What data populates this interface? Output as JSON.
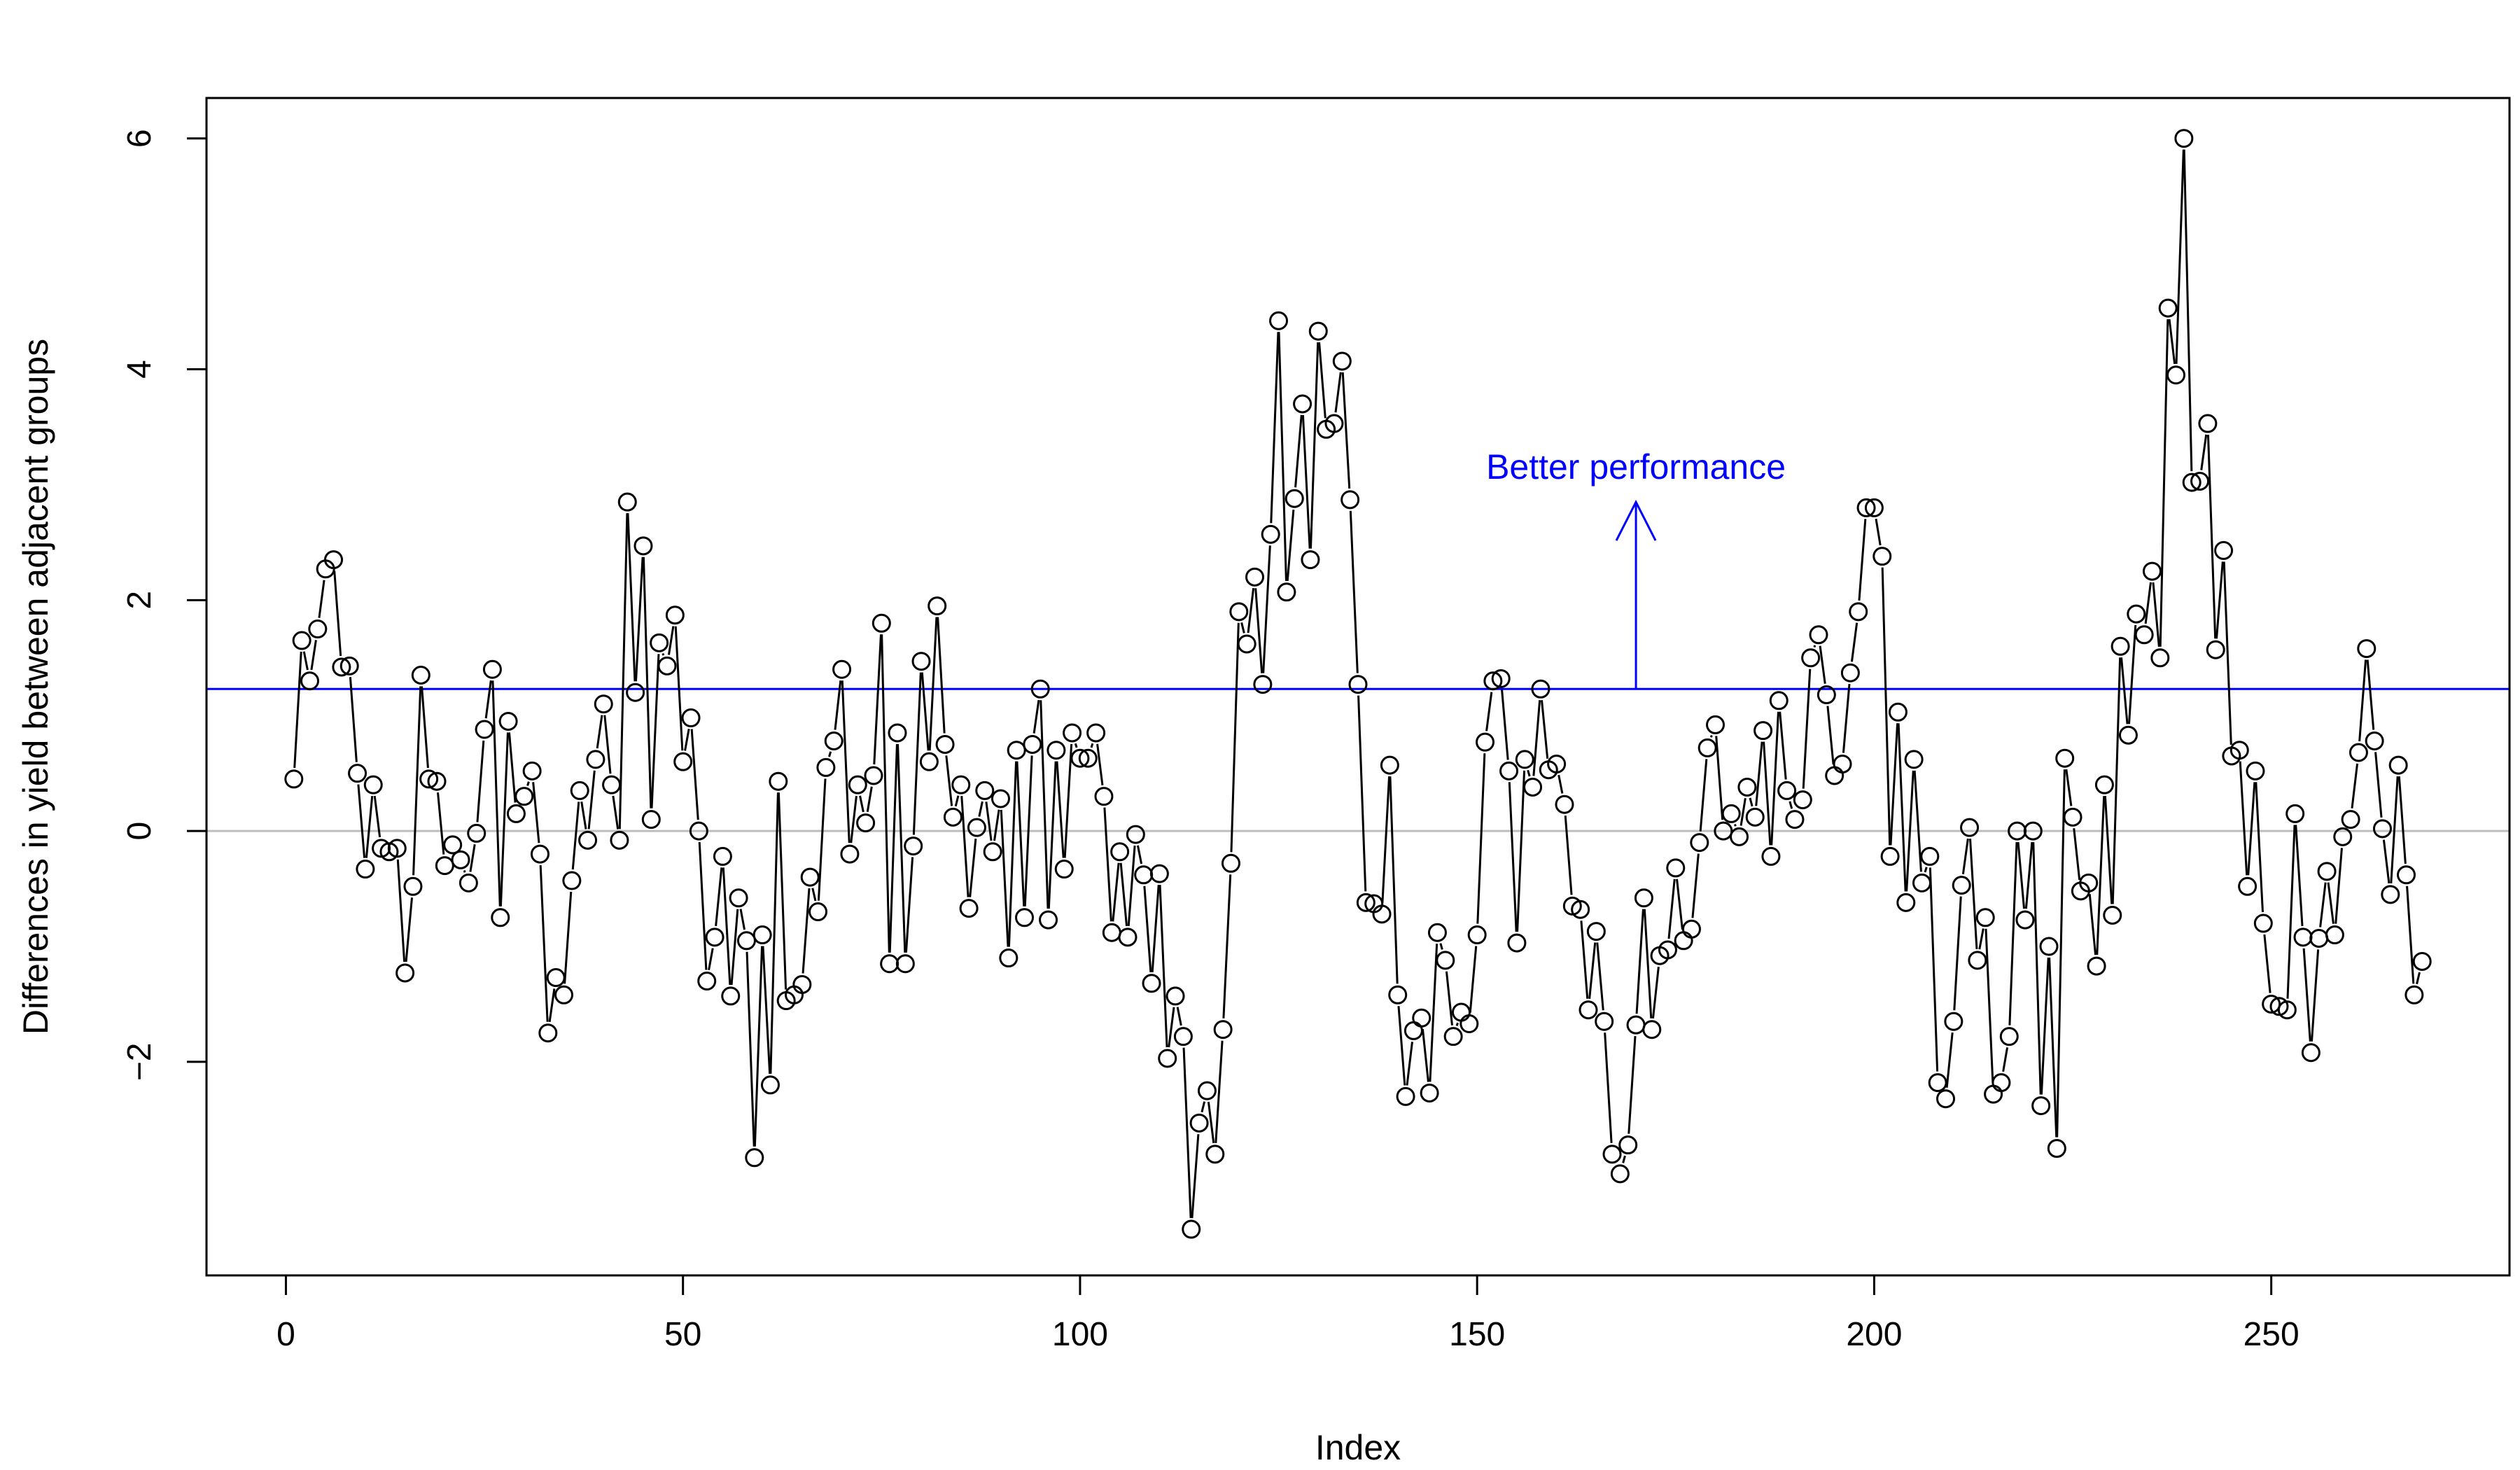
{
  "chart_data": {
    "type": "line",
    "title": "",
    "xlabel": "Index",
    "ylabel": "Differences in yield between adjacent groups",
    "xlim": [
      -10,
      280
    ],
    "ylim": [
      -3.85,
      6.35
    ],
    "x_ticks": [
      0,
      50,
      100,
      150,
      200,
      250
    ],
    "y_ticks": [
      -2,
      0,
      2,
      4,
      6
    ],
    "grid": false,
    "series": [
      {
        "style": "points-and-lines",
        "marker": "open-circle",
        "color": "#000000",
        "x_start": 1,
        "values": [
          0.45,
          1.65,
          1.3,
          1.75,
          2.27,
          2.35,
          1.42,
          1.43,
          0.5,
          -0.33,
          0.4,
          -0.15,
          -0.18,
          -0.15,
          -1.23,
          -0.48,
          1.35,
          0.45,
          0.43,
          -0.3,
          -0.12,
          -0.25,
          -0.45,
          -0.02,
          0.88,
          1.4,
          -0.75,
          0.95,
          0.15,
          0.3,
          0.52,
          -0.2,
          -1.75,
          -1.27,
          -1.42,
          -0.43,
          0.35,
          -0.08,
          0.62,
          1.1,
          0.4,
          -0.08,
          2.85,
          1.2,
          2.47,
          0.1,
          1.63,
          1.43,
          1.87,
          0.6,
          0.98,
          0.0,
          -1.3,
          -0.92,
          -0.22,
          -1.43,
          -0.58,
          -0.95,
          -2.83,
          -0.9,
          -2.2,
          0.43,
          -1.47,
          -1.42,
          -1.33,
          -0.4,
          -0.7,
          0.55,
          0.78,
          1.4,
          -0.2,
          0.4,
          0.07,
          0.48,
          1.8,
          -1.15,
          0.85,
          -1.15,
          -0.13,
          1.47,
          0.6,
          1.95,
          0.75,
          0.12,
          0.4,
          -0.67,
          0.03,
          0.35,
          -0.18,
          0.28,
          -1.1,
          0.7,
          -0.75,
          0.75,
          1.23,
          -0.77,
          0.7,
          -0.33,
          0.85,
          0.63,
          0.63,
          0.85,
          0.3,
          -0.88,
          -0.18,
          -0.92,
          -0.03,
          -0.38,
          -1.32,
          -0.37,
          -1.97,
          -1.43,
          -1.78,
          -3.45,
          -2.53,
          -2.25,
          -2.8,
          -1.72,
          -0.28,
          1.9,
          1.62,
          2.2,
          1.27,
          2.57,
          4.42,
          2.07,
          2.88,
          3.7,
          2.35,
          4.33,
          3.48,
          3.53,
          4.07,
          2.87,
          1.27,
          -0.62,
          -0.63,
          -0.72,
          0.57,
          -1.42,
          -2.3,
          -1.73,
          -1.62,
          -2.27,
          -0.88,
          -1.12,
          -1.78,
          -1.57,
          -1.67,
          -0.9,
          0.77,
          1.3,
          1.32,
          0.52,
          -0.97,
          0.62,
          0.38,
          1.23,
          0.53,
          0.58,
          0.23,
          -0.65,
          -0.68,
          -1.55,
          -0.87,
          -1.65,
          -2.8,
          -2.97,
          -2.72,
          -1.68,
          -0.58,
          -1.72,
          -1.08,
          -1.03,
          -0.32,
          -0.95,
          -0.85,
          -0.1,
          0.72,
          0.92,
          0.0,
          0.15,
          -0.05,
          0.38,
          0.12,
          0.87,
          -0.22,
          1.13,
          0.35,
          0.1,
          0.27,
          1.5,
          1.7,
          1.18,
          0.48,
          0.58,
          1.37,
          1.9,
          2.8,
          2.8,
          2.38,
          -0.22,
          1.03,
          -0.62,
          0.62,
          -0.45,
          -0.22,
          -2.18,
          -2.32,
          -1.65,
          -0.47,
          0.03,
          -1.12,
          -0.75,
          -2.28,
          -2.18,
          -1.78,
          0.0,
          -0.77,
          0.0,
          -2.38,
          -1.0,
          -2.75,
          0.63,
          0.12,
          -0.52,
          -0.45,
          -1.17,
          0.4,
          -0.73,
          1.6,
          0.83,
          1.88,
          1.7,
          2.25,
          1.5,
          4.53,
          3.95,
          6.0,
          3.02,
          3.03,
          3.53,
          1.57,
          2.43,
          0.65,
          0.7,
          -0.48,
          0.52,
          -0.8,
          -1.5,
          -1.52,
          -1.55,
          0.15,
          -0.92,
          -1.92,
          -0.93,
          -0.35,
          -0.9,
          -0.05,
          0.1,
          0.68,
          1.58,
          0.78,
          0.02,
          -0.55,
          0.57,
          -0.38,
          -1.42,
          -1.13
        ]
      }
    ],
    "reference_lines": [
      {
        "orientation": "horizontal",
        "y": 0,
        "color": "#bebebe"
      },
      {
        "orientation": "horizontal",
        "y": 1.23,
        "color": "#0000ff"
      }
    ],
    "annotations": [
      {
        "text": "Better performance",
        "color": "#0000ff",
        "arrow_x": 170,
        "arrow_from_y": 1.23,
        "arrow_to_y": 2.85,
        "text_y": 3.05
      }
    ]
  }
}
